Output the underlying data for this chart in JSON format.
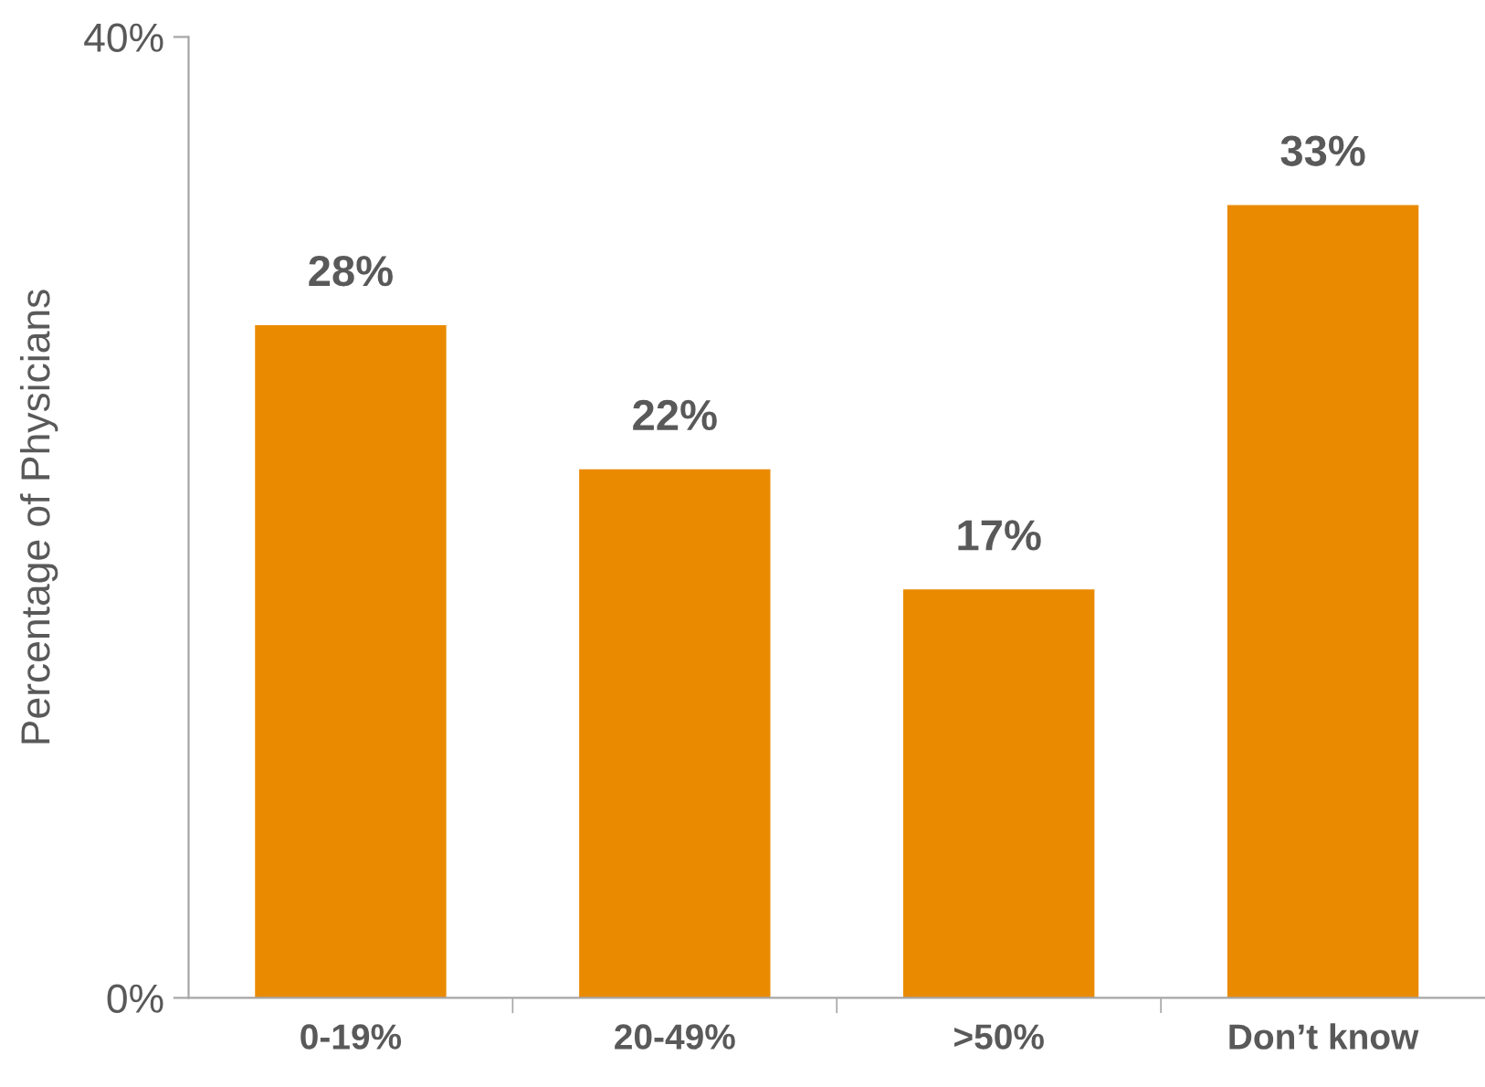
{
  "chart_data": {
    "type": "bar",
    "ylabel": "Percentage of Physicians",
    "categories": [
      "0-19%",
      "20-49%",
      ">50%",
      "Don’t know"
    ],
    "values": [
      28,
      22,
      17,
      33
    ],
    "value_labels": [
      "28%",
      "22%",
      "17%",
      "33%"
    ],
    "color": "#ea8a00",
    "ylim": [
      0,
      40
    ],
    "yticks": [
      {
        "value": 0,
        "label": "0%"
      },
      {
        "value": 40,
        "label": "40%"
      }
    ],
    "grid": false,
    "legend": false
  }
}
